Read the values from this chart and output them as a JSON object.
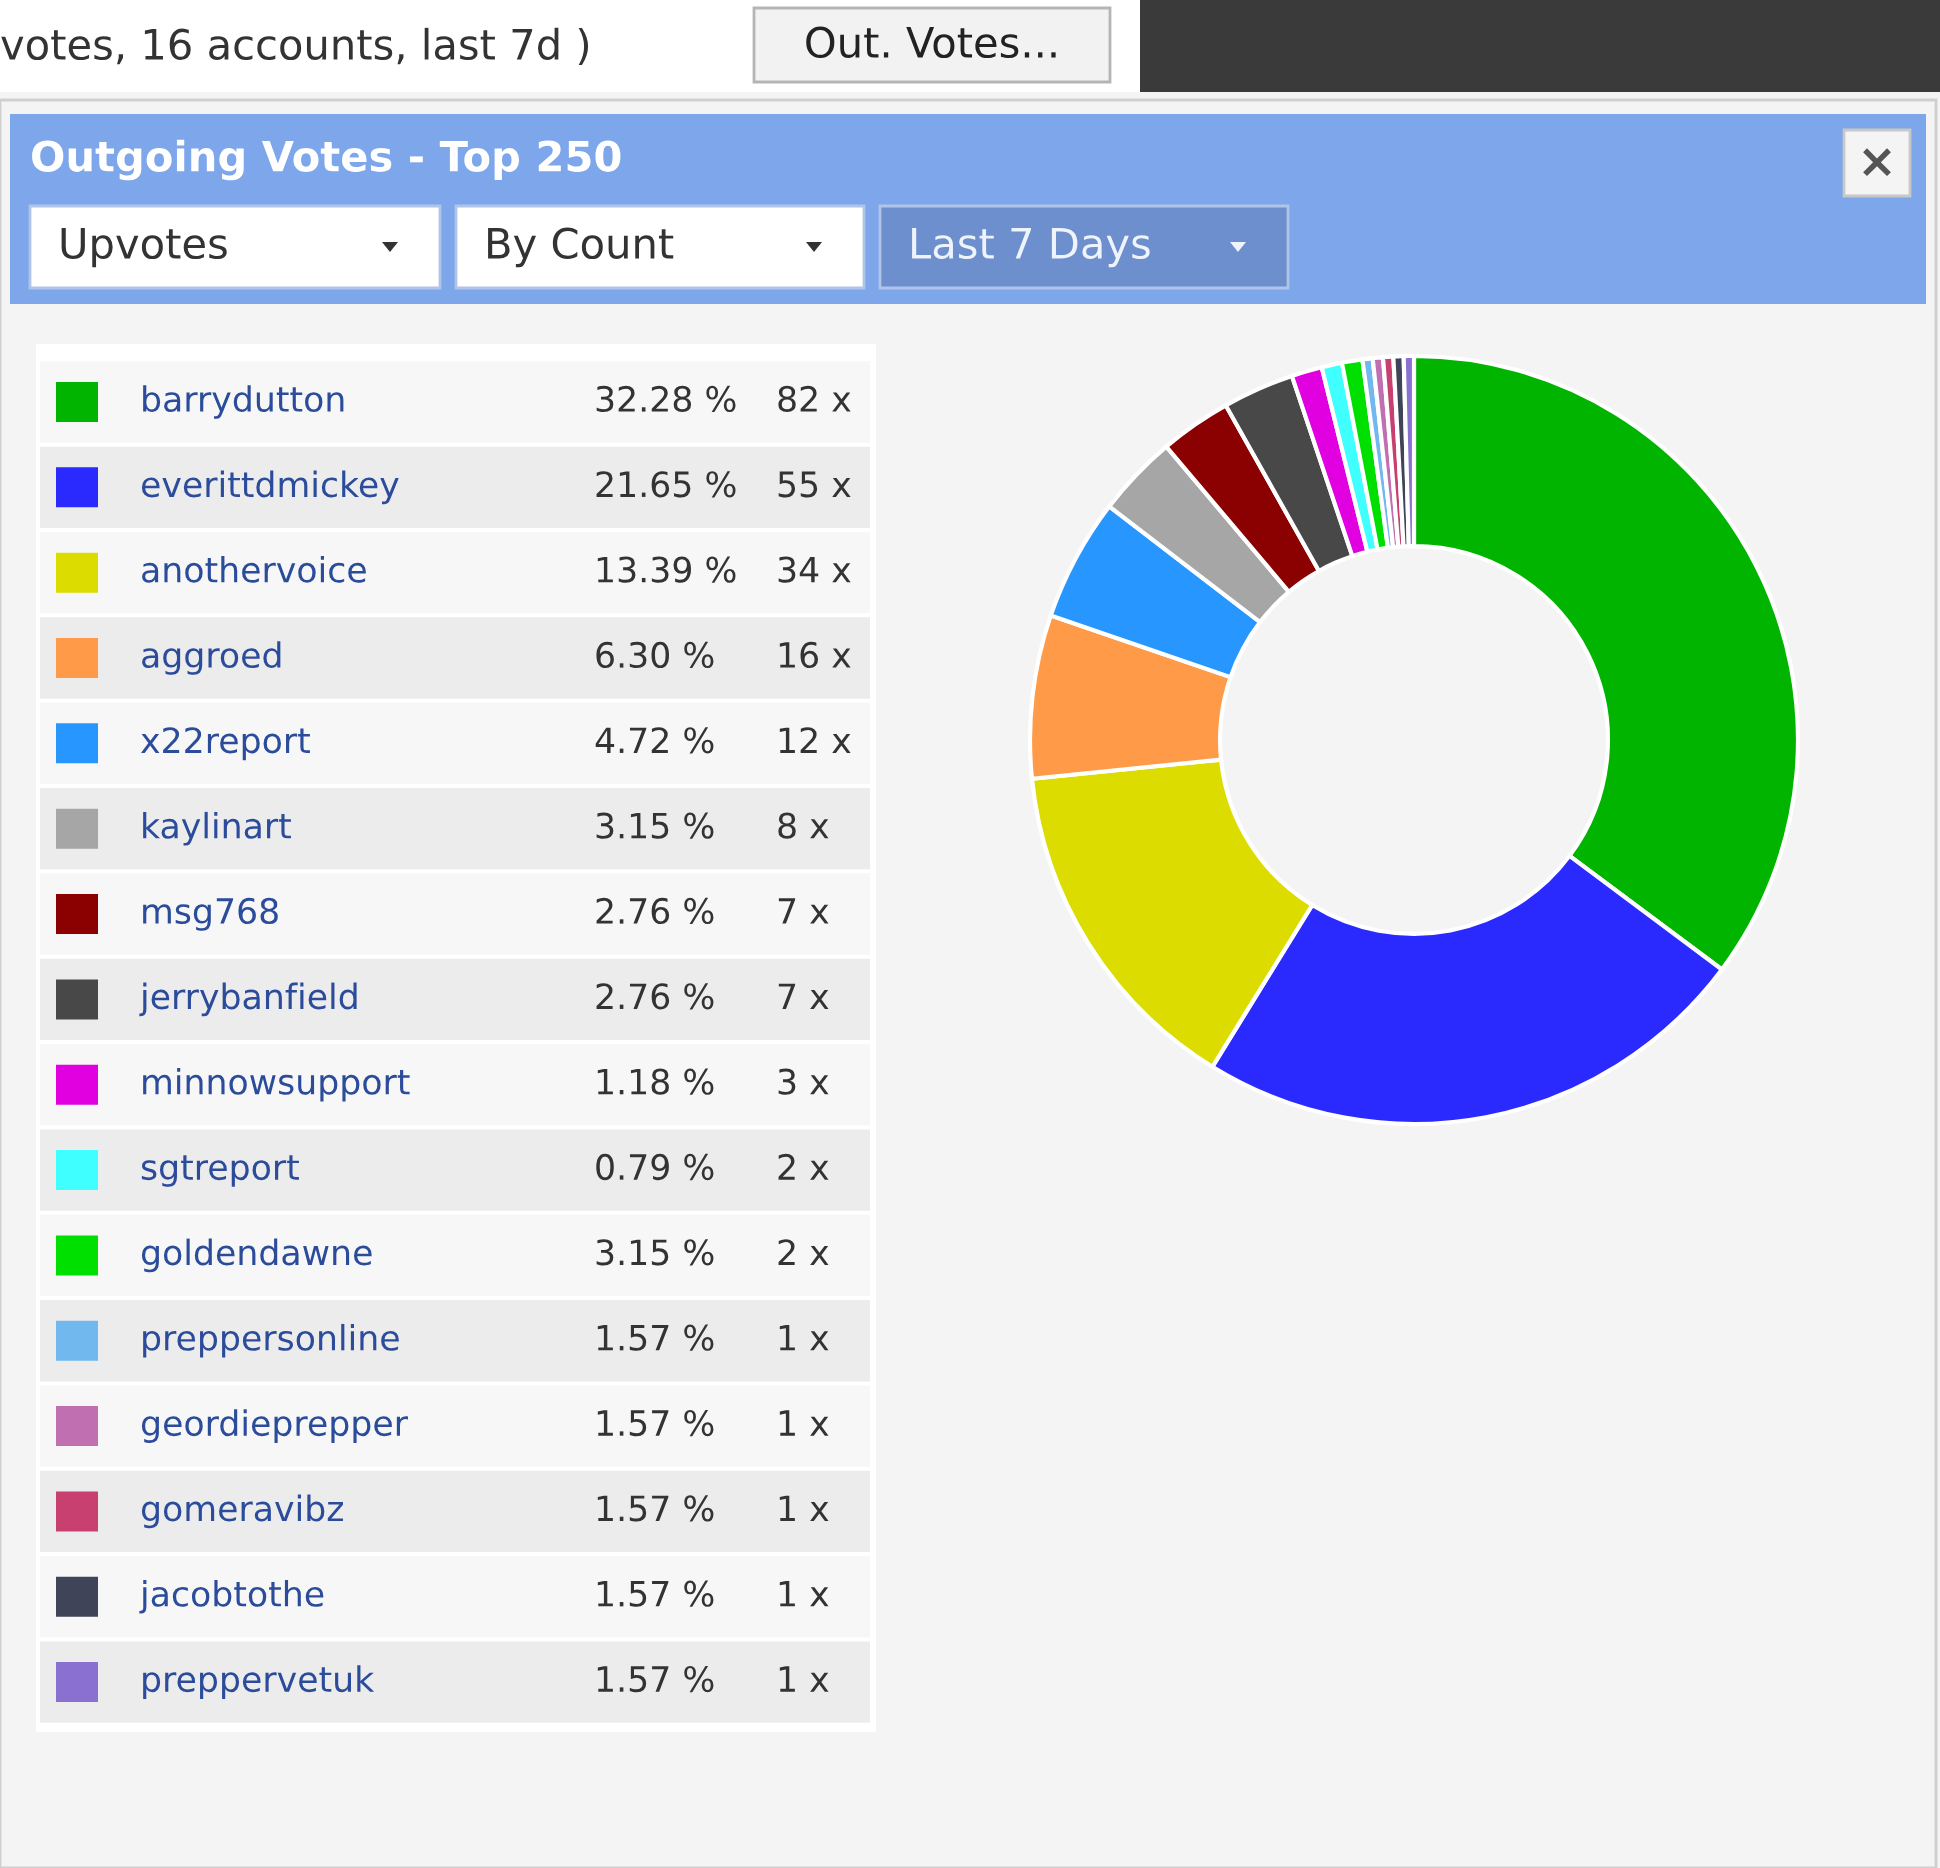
{
  "chart_data": {
    "type": "donut",
    "legend": "left",
    "title": "Outgoing Votes - Top 250",
    "categories": [
      "barrydutton",
      "everittdmickey",
      "anothervoice",
      "aggroed",
      "x22report",
      "kaylinart",
      "msg768",
      "jerrybanfield",
      "minnowsupport",
      "sgtreport",
      "goldendawne",
      "preppersonline",
      "geordieprepper",
      "gomeravibz",
      "jacobtothe",
      "preppervetuk"
    ],
    "values": [
      82,
      55,
      34,
      16,
      12,
      8,
      7,
      7,
      3,
      2,
      2,
      1,
      1,
      1,
      1,
      1
    ],
    "colors": [
      "#00b400",
      "#2a2aff",
      "#dcdc00",
      "#ff9a48",
      "#2896ff",
      "#a6a6a6",
      "#8b0000",
      "#484848",
      "#e000e0",
      "#40ffff",
      "#00e000",
      "#70b8ee",
      "#c070b0",
      "#c84070",
      "#404458",
      "#8a70d0"
    ],
    "value_labels": [
      "82 x",
      "55 x",
      "34 x",
      "16 x",
      "12 x",
      "8 x",
      "7 x",
      "7 x",
      "3 x",
      "2 x",
      "2 x",
      "1 x",
      "1 x",
      "1 x",
      "1 x",
      "1 x"
    ],
    "annotations": [
      "votes, 16 accounts, last 7d )",
      "Out. Votes...",
      "×",
      "Upvotes",
      "By Count",
      "Last 7 Days",
      "32.28 %",
      "21.65 %",
      "13.39 %",
      "6.30 %",
      "4.72 %",
      "3.15 %",
      "2.76 %",
      "2.76 %",
      "1.18 %",
      "0.79 %",
      "3.15 %",
      "1.57 %",
      "1.57 %",
      "1.57 %",
      "1.57 %",
      "1.57 %"
    ]
  }
}
